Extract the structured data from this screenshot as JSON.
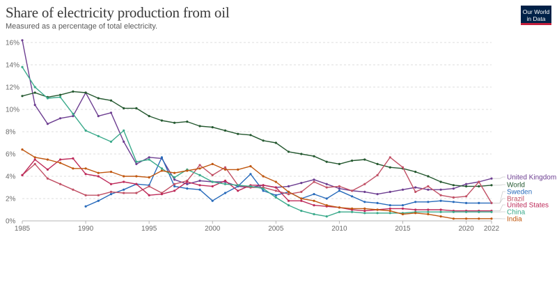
{
  "header": {
    "title": "Share of electricity production from oil",
    "subtitle": "Measured as a percentage of total electricity."
  },
  "logo": {
    "line1": "Our World",
    "line2": "in Data"
  },
  "chart_data": {
    "type": "line",
    "title": "Share of electricity production from oil",
    "subtitle": "Measured as a percentage of total electricity.",
    "xlim": [
      1985,
      2022
    ],
    "ylim": [
      0,
      16
    ],
    "x_ticks": [
      1985,
      1990,
      1995,
      2000,
      2005,
      2010,
      2015,
      2020,
      2022
    ],
    "y_ticks": [
      0,
      2,
      4,
      6,
      8,
      10,
      12,
      14,
      16
    ],
    "y_tick_suffix": "%",
    "grid": "horizontal dashed",
    "legend": "right, end-of-line labels",
    "series": [
      {
        "name": "United Kingdom",
        "color": "#6d3e91",
        "start": 1985,
        "values": [
          16.2,
          10.4,
          8.7,
          9.2,
          9.4,
          11.5,
          9.4,
          9.7,
          7.1,
          5.1,
          5.7,
          5.6,
          3.7,
          3.3,
          3.6,
          3.5,
          3.5,
          3.1,
          3.0,
          3.2,
          3.0,
          3.1,
          3.4,
          3.7,
          3.3,
          2.9,
          2.7,
          2.6,
          2.4,
          2.6,
          2.8,
          3.0,
          2.8,
          2.8,
          2.9,
          3.3,
          3.5,
          3.8
        ]
      },
      {
        "name": "World",
        "color": "#24582f",
        "start": 1985,
        "values": [
          11.2,
          11.5,
          11.1,
          11.3,
          11.6,
          11.5,
          11.0,
          10.8,
          10.1,
          10.1,
          9.4,
          9.0,
          8.8,
          8.9,
          8.5,
          8.4,
          8.1,
          7.8,
          7.7,
          7.2,
          7.0,
          6.2,
          6.0,
          5.8,
          5.3,
          5.1,
          5.4,
          5.5,
          5.1,
          4.8,
          4.7,
          4.4,
          4.0,
          3.5,
          3.2,
          3.1,
          3.1,
          3.2
        ]
      },
      {
        "name": "Sweden",
        "color": "#286bbb",
        "start": 1990,
        "values": [
          1.3,
          1.8,
          2.4,
          2.8,
          3.3,
          3.2,
          5.7,
          3.1,
          2.9,
          2.8,
          1.8,
          2.5,
          3.1,
          4.2,
          2.7,
          2.3,
          2.6,
          2.0,
          2.4,
          2.0,
          2.7,
          2.2,
          1.7,
          1.6,
          1.4,
          1.4,
          1.7,
          1.7,
          1.8,
          1.7,
          1.6,
          1.6,
          1.6
        ]
      },
      {
        "name": "Brazil",
        "color": "#c15065",
        "start": 1985,
        "values": [
          4.1,
          5.1,
          3.8,
          3.3,
          2.8,
          2.3,
          2.3,
          2.6,
          2.5,
          2.5,
          3.1,
          2.5,
          3.3,
          3.6,
          5.0,
          4.1,
          4.8,
          3.2,
          3.0,
          3.0,
          2.7,
          2.4,
          2.6,
          3.5,
          3.0,
          3.1,
          2.7,
          3.3,
          4.1,
          5.7,
          4.8,
          2.6,
          3.1,
          2.3,
          2.1,
          2.2,
          3.5,
          1.6
        ]
      },
      {
        "name": "United States",
        "color": "#be2b5a",
        "start": 1985,
        "values": [
          4.1,
          5.5,
          4.6,
          5.5,
          5.6,
          4.2,
          4.0,
          3.3,
          3.5,
          3.3,
          2.3,
          2.4,
          2.7,
          3.5,
          3.2,
          3.1,
          3.6,
          2.7,
          3.2,
          3.2,
          3.0,
          1.8,
          1.8,
          1.4,
          1.3,
          1.2,
          1.0,
          0.9,
          1.0,
          1.1,
          1.1,
          1.0,
          1.0,
          1.0,
          0.9,
          0.9,
          0.9,
          0.9
        ]
      },
      {
        "name": "China",
        "color": "#3aaa8b",
        "start": 1985,
        "values": [
          13.8,
          12.0,
          11.0,
          11.1,
          9.6,
          8.1,
          7.6,
          7.1,
          8.1,
          5.3,
          5.5,
          4.7,
          3.9,
          4.6,
          4.1,
          3.5,
          3.3,
          3.2,
          3.1,
          2.9,
          2.1,
          1.4,
          0.9,
          0.6,
          0.4,
          0.8,
          0.8,
          0.7,
          0.7,
          0.7,
          0.7,
          0.8,
          0.8,
          0.8,
          0.8,
          0.8,
          0.8,
          0.8
        ]
      },
      {
        "name": "India",
        "color": "#c0570f",
        "start": 1985,
        "values": [
          6.4,
          5.7,
          5.5,
          5.2,
          4.7,
          4.7,
          4.3,
          4.4,
          4.0,
          4.0,
          3.9,
          4.5,
          4.3,
          4.5,
          4.7,
          5.1,
          4.6,
          4.6,
          4.9,
          4.0,
          3.5,
          2.6,
          2.0,
          1.8,
          1.4,
          1.2,
          1.1,
          1.1,
          1.0,
          0.9,
          0.6,
          0.7,
          0.6,
          0.4,
          0.2,
          0.2,
          0.2,
          0.2
        ]
      }
    ]
  }
}
